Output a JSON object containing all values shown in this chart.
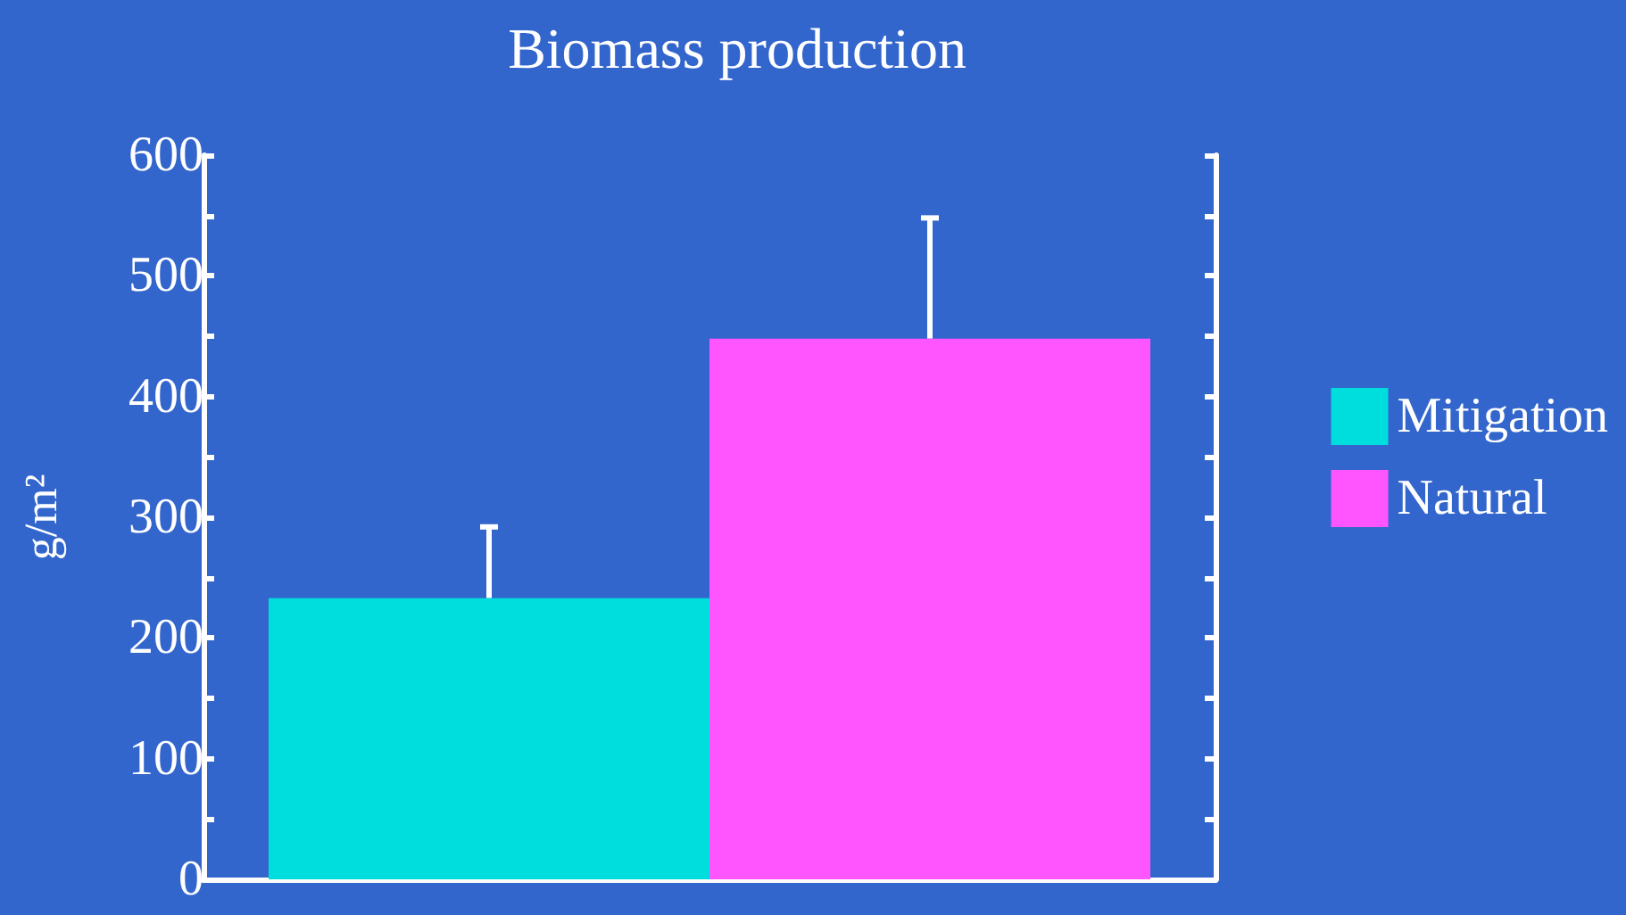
{
  "chart_data": {
    "type": "bar",
    "title": "Biomass production",
    "ylabel": "g/m²",
    "categories": [
      null
    ],
    "series": [
      {
        "name": "Mitigation",
        "color": "#00dddd",
        "values": [
          233
        ],
        "errors": [
          [
            233,
            292
          ]
        ]
      },
      {
        "name": "Natural",
        "color": "#ff55ff",
        "values": [
          448
        ],
        "errors": [
          [
            448,
            548
          ]
        ]
      }
    ],
    "ylim": [
      0,
      600
    ],
    "yticks": [
      0,
      {
        "value": 50,
        "label": null
      },
      100,
      {
        "value": 150,
        "label": null
      },
      200,
      {
        "value": 250,
        "label": null
      },
      300,
      {
        "value": 350,
        "label": null
      },
      400,
      {
        "value": 450,
        "label": null
      },
      500,
      {
        "value": 550,
        "label": null
      },
      600
    ],
    "grid": false,
    "legend": "right"
  }
}
